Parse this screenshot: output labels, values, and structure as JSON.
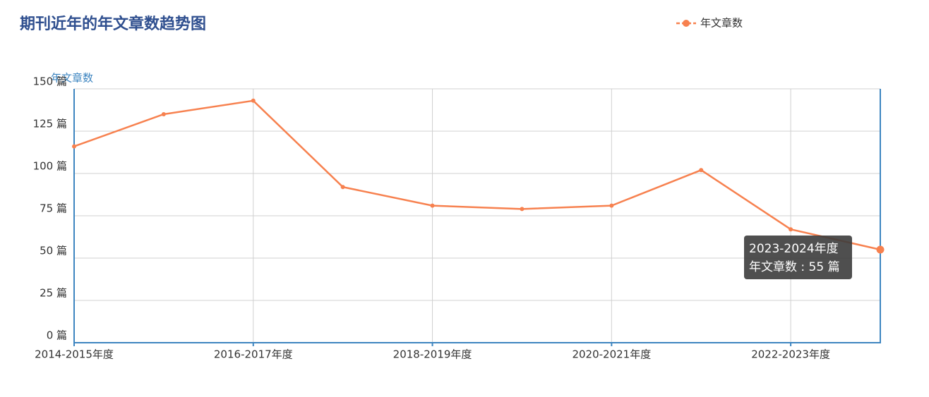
{
  "chart_data": {
    "type": "line",
    "title": "期刊近年的年文章数趋势图",
    "ylabel": "年文章数",
    "categories": [
      "2014-2015年度",
      null,
      "2016-2017年度",
      null,
      "2018-2019年度",
      null,
      "2020-2021年度",
      null,
      "2022-2023年度",
      null
    ],
    "series": [
      {
        "name": "年文章数",
        "color": "#f7814f",
        "values": [
          116,
          135,
          143,
          92,
          81,
          79,
          81,
          102,
          67,
          55
        ]
      }
    ],
    "ylim": [
      0,
      150
    ],
    "yticks": [
      {
        "value": 0,
        "label": "0 篇"
      },
      {
        "value": 25,
        "label": "25 篇"
      },
      {
        "value": 50,
        "label": "50 篇"
      },
      {
        "value": 75,
        "label": "75 篇"
      },
      {
        "value": 100,
        "label": "100 篇"
      },
      {
        "value": 125,
        "label": "125 篇"
      },
      {
        "value": 150,
        "label": "150 篇"
      }
    ],
    "grid": true,
    "legend": "top-right",
    "tooltip": {
      "title": "2023-2024年度",
      "text": "年文章数 : 55 篇"
    }
  }
}
